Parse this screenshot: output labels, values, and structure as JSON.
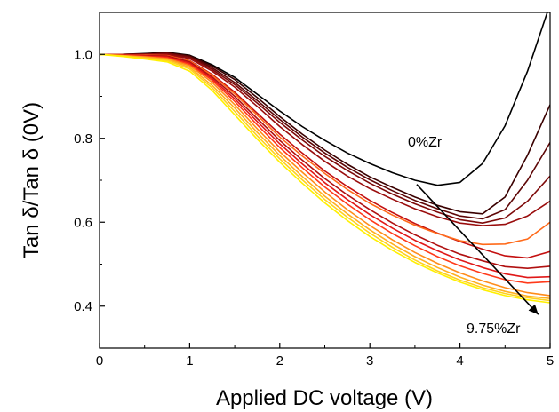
{
  "chart_data": {
    "type": "line",
    "xlabel": "Applied DC voltage (V)",
    "ylabel": "Tan δ/Tan δ (0V)",
    "xlim": [
      0,
      5
    ],
    "ylim": [
      0.3,
      1.1
    ],
    "xticks": [
      "0",
      "1",
      "2",
      "3",
      "4",
      "5"
    ],
    "yticks": [
      "0.4",
      "0.6",
      "0.8",
      "1.0"
    ],
    "grid": false,
    "annotations": [
      {
        "text": "0%Zr"
      },
      {
        "text": "9.75%Zr"
      }
    ],
    "arrow": {
      "from": [
        3.52,
        0.69
      ],
      "to": [
        4.87,
        0.38
      ]
    },
    "x": [
      0,
      0.25,
      0.5,
      0.75,
      1.0,
      1.25,
      1.5,
      1.75,
      2.0,
      2.25,
      2.5,
      2.75,
      3.0,
      3.25,
      3.5,
      3.75,
      4.0,
      4.25,
      4.5,
      4.75,
      5.0
    ],
    "series": [
      {
        "color": "#000000",
        "values": [
          1.0,
          1.0,
          1.002,
          1.005,
          0.998,
          0.975,
          0.945,
          0.905,
          0.865,
          0.828,
          0.795,
          0.765,
          0.74,
          0.718,
          0.7,
          0.688,
          0.695,
          0.74,
          0.83,
          0.96,
          1.12
        ]
      },
      {
        "color": "#3a0000",
        "values": [
          1.0,
          1.0,
          1.001,
          1.004,
          0.997,
          0.972,
          0.94,
          0.897,
          0.852,
          0.81,
          0.772,
          0.738,
          0.708,
          0.683,
          0.66,
          0.64,
          0.625,
          0.62,
          0.66,
          0.76,
          0.88
        ]
      },
      {
        "color": "#5e0606",
        "values": [
          1.0,
          1.0,
          1.001,
          1.003,
          0.995,
          0.968,
          0.933,
          0.89,
          0.845,
          0.803,
          0.765,
          0.731,
          0.701,
          0.675,
          0.652,
          0.632,
          0.615,
          0.608,
          0.63,
          0.7,
          0.79
        ]
      },
      {
        "color": "#7e0a0a",
        "values": [
          1.0,
          1.0,
          1.0,
          1.002,
          0.993,
          0.964,
          0.928,
          0.884,
          0.838,
          0.796,
          0.757,
          0.723,
          0.693,
          0.667,
          0.644,
          0.624,
          0.606,
          0.598,
          0.61,
          0.65,
          0.71
        ]
      },
      {
        "color": "#9a0d0d",
        "values": [
          1.0,
          1.0,
          1.0,
          1.0,
          0.99,
          0.96,
          0.922,
          0.876,
          0.828,
          0.785,
          0.745,
          0.71,
          0.68,
          0.655,
          0.632,
          0.613,
          0.598,
          0.592,
          0.595,
          0.615,
          0.65
        ]
      },
      {
        "color": "#c40f0f",
        "values": [
          1.0,
          0.999,
          0.998,
          0.998,
          0.985,
          0.952,
          0.91,
          0.86,
          0.81,
          0.765,
          0.722,
          0.685,
          0.652,
          0.623,
          0.597,
          0.574,
          0.554,
          0.536,
          0.52,
          0.515,
          0.53
        ]
      },
      {
        "color": "#ff6a1a",
        "values": [
          1.0,
          0.999,
          0.998,
          0.997,
          0.984,
          0.95,
          0.906,
          0.855,
          0.803,
          0.758,
          0.716,
          0.678,
          0.645,
          0.617,
          0.593,
          0.573,
          0.556,
          0.547,
          0.548,
          0.56,
          0.6
        ]
      },
      {
        "color": "#b01010",
        "values": [
          1.0,
          0.999,
          0.997,
          0.996,
          0.982,
          0.946,
          0.9,
          0.847,
          0.795,
          0.748,
          0.704,
          0.665,
          0.63,
          0.598,
          0.57,
          0.545,
          0.524,
          0.508,
          0.494,
          0.49,
          0.495
        ]
      },
      {
        "color": "#e01818",
        "values": [
          1.0,
          0.998,
          0.996,
          0.994,
          0.979,
          0.942,
          0.894,
          0.84,
          0.787,
          0.739,
          0.694,
          0.654,
          0.618,
          0.586,
          0.557,
          0.532,
          0.51,
          0.492,
          0.477,
          0.468,
          0.47
        ]
      },
      {
        "color": "#ff3a1a",
        "values": [
          1.0,
          0.998,
          0.995,
          0.992,
          0.976,
          0.938,
          0.888,
          0.832,
          0.778,
          0.73,
          0.684,
          0.643,
          0.606,
          0.573,
          0.544,
          0.518,
          0.496,
          0.478,
          0.463,
          0.455,
          0.458
        ]
      },
      {
        "color": "#ff8c1a",
        "values": [
          1.0,
          0.997,
          0.994,
          0.99,
          0.973,
          0.933,
          0.88,
          0.823,
          0.768,
          0.719,
          0.672,
          0.63,
          0.592,
          0.558,
          0.528,
          0.502,
          0.479,
          0.46,
          0.444,
          0.432,
          0.425
        ]
      },
      {
        "color": "#ffb020",
        "values": [
          1.0,
          0.997,
          0.993,
          0.988,
          0.969,
          0.926,
          0.872,
          0.814,
          0.759,
          0.709,
          0.662,
          0.62,
          0.582,
          0.548,
          0.518,
          0.492,
          0.469,
          0.45,
          0.435,
          0.424,
          0.418
        ]
      },
      {
        "color": "#ffd21e",
        "values": [
          1.0,
          0.996,
          0.991,
          0.985,
          0.965,
          0.92,
          0.864,
          0.806,
          0.751,
          0.701,
          0.654,
          0.612,
          0.574,
          0.54,
          0.51,
          0.484,
          0.462,
          0.444,
          0.43,
          0.42,
          0.413
        ]
      },
      {
        "color": "#fff000",
        "values": [
          1.0,
          0.995,
          0.989,
          0.982,
          0.96,
          0.914,
          0.856,
          0.798,
          0.743,
          0.693,
          0.646,
          0.604,
          0.566,
          0.533,
          0.504,
          0.479,
          0.457,
          0.439,
          0.425,
          0.415,
          0.408
        ]
      }
    ]
  }
}
